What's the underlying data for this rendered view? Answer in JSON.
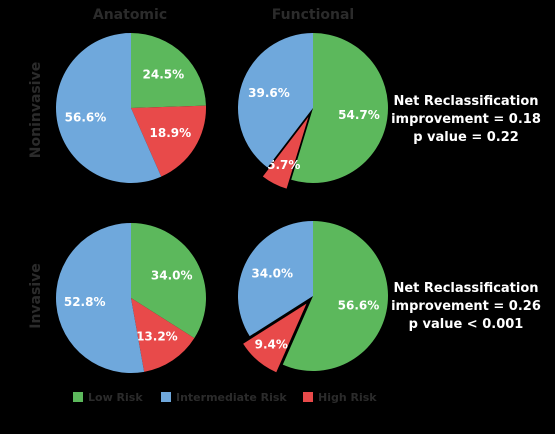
{
  "colors": {
    "low": "#5cb85c",
    "intermediate": "#6fa8dc",
    "high": "#e84a4a",
    "background": "#000000",
    "heading_text": "#2b2b2b",
    "label_text": "#ffffff"
  },
  "headings": {
    "col_anatomic": "Anatomic",
    "col_functional": "Functional",
    "row_noninvasive": "Noninvasive",
    "row_invasive": "Invasive"
  },
  "nri": {
    "noninvasive": {
      "line1": "Net Reclassification",
      "line2": "improvement = 0.18",
      "line3": "p value = 0.22"
    },
    "invasive": {
      "line1": "Net Reclassification",
      "line2": "improvement = 0.26",
      "line3": "p value < 0.001"
    }
  },
  "legend": [
    {
      "label": "Low Risk",
      "key": "low"
    },
    {
      "label": "Intermediate Risk",
      "key": "intermediate"
    },
    {
      "label": "High Risk",
      "key": "high"
    }
  ],
  "chart_data": [
    {
      "type": "pie",
      "row": "Noninvasive",
      "column": "Anatomic",
      "slices": [
        {
          "category": "Low Risk",
          "value": 24.5,
          "label": "24.5%"
        },
        {
          "category": "High Risk",
          "value": 18.9,
          "label": "18.9%"
        },
        {
          "category": "Intermediate Risk",
          "value": 56.6,
          "label": "56.6%"
        }
      ]
    },
    {
      "type": "pie",
      "row": "Noninvasive",
      "column": "Functional",
      "slices": [
        {
          "category": "Low Risk",
          "value": 54.7,
          "label": "54.7%"
        },
        {
          "category": "High Risk",
          "value": 5.7,
          "label": "5.7%",
          "exploded": true
        },
        {
          "category": "Intermediate Risk",
          "value": 39.6,
          "label": "39.6%"
        }
      ]
    },
    {
      "type": "pie",
      "row": "Invasive",
      "column": "Anatomic",
      "slices": [
        {
          "category": "Low Risk",
          "value": 34.0,
          "label": "34.0%"
        },
        {
          "category": "High Risk",
          "value": 13.2,
          "label": "13.2%"
        },
        {
          "category": "Intermediate Risk",
          "value": 52.8,
          "label": "52.8%"
        }
      ]
    },
    {
      "type": "pie",
      "row": "Invasive",
      "column": "Functional",
      "slices": [
        {
          "category": "Low Risk",
          "value": 56.6,
          "label": "56.6%"
        },
        {
          "category": "High Risk",
          "value": 9.4,
          "label": "9.4%",
          "exploded": true
        },
        {
          "category": "Intermediate Risk",
          "value": 34.0,
          "label": "34.0%"
        }
      ]
    }
  ]
}
